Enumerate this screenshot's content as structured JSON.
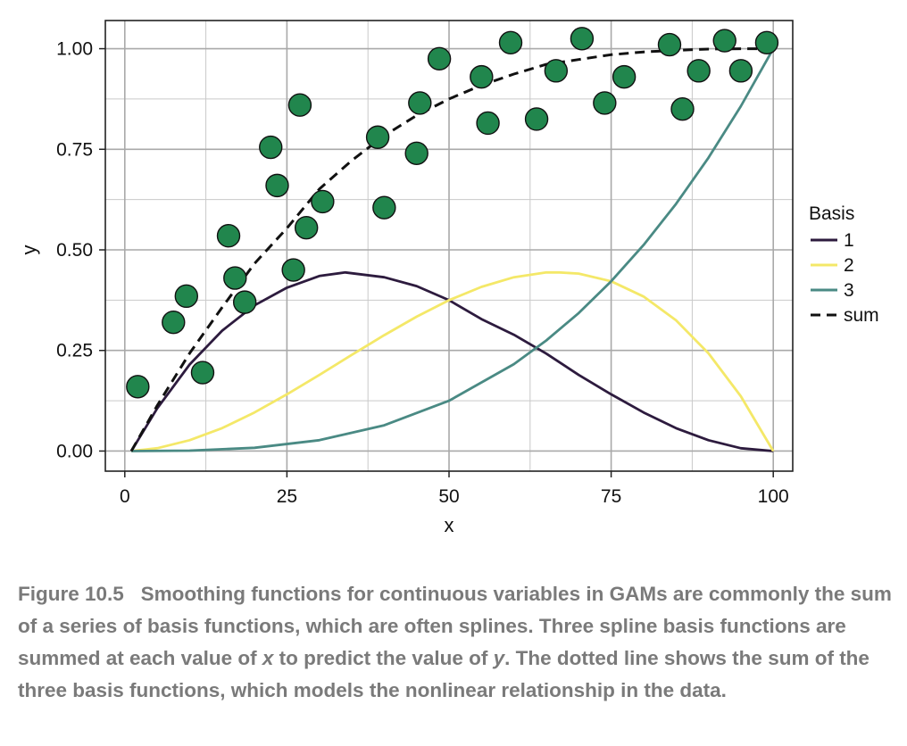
{
  "chart_data": {
    "type": "line",
    "title": "",
    "xlabel": "x",
    "ylabel": "y",
    "xlim": [
      -3,
      103
    ],
    "ylim": [
      -0.05,
      1.07
    ],
    "x_ticks": [
      0,
      25,
      50,
      75,
      100
    ],
    "x_tick_labels": [
      "0",
      "25",
      "50",
      "75",
      "100"
    ],
    "y_ticks": [
      0,
      0.25,
      0.5,
      0.75,
      1
    ],
    "y_tick_labels": [
      "0.00",
      "0.25",
      "0.50",
      "0.75",
      "1.00"
    ],
    "grid": true,
    "legend": {
      "title": "Basis",
      "placement": "right",
      "entries": [
        {
          "label": "1",
          "color": "#2d1b3e",
          "dash": "solid"
        },
        {
          "label": "2",
          "color": "#f4e868",
          "dash": "solid"
        },
        {
          "label": "3",
          "color": "#4a8a84",
          "dash": "solid"
        },
        {
          "label": "sum",
          "color": "#111111",
          "dash": "dashed"
        }
      ]
    },
    "series": [
      {
        "name": "1",
        "color": "#2d1b3e",
        "x": [
          1,
          5,
          10,
          15,
          20,
          25,
          30,
          34,
          40,
          45,
          50,
          55,
          60,
          65,
          70,
          75,
          80,
          85,
          90,
          95,
          100
        ],
        "y": [
          0,
          0.106,
          0.215,
          0.299,
          0.362,
          0.406,
          0.435,
          0.444,
          0.432,
          0.41,
          0.375,
          0.328,
          0.289,
          0.242,
          0.189,
          0.141,
          0.096,
          0.057,
          0.027,
          0.007,
          0
        ]
      },
      {
        "name": "2",
        "color": "#f4e868",
        "x": [
          1,
          5,
          10,
          15,
          20,
          25,
          30,
          35,
          40,
          45,
          50,
          55,
          60,
          65,
          67,
          70,
          75,
          80,
          85,
          90,
          95,
          100
        ],
        "y": [
          0,
          0.007,
          0.027,
          0.057,
          0.096,
          0.141,
          0.189,
          0.239,
          0.288,
          0.334,
          0.375,
          0.408,
          0.432,
          0.444,
          0.444,
          0.441,
          0.422,
          0.384,
          0.325,
          0.243,
          0.136,
          0
        ]
      },
      {
        "name": "3",
        "color": "#4a8a84",
        "x": [
          1,
          10,
          20,
          30,
          40,
          50,
          60,
          65,
          70,
          75,
          80,
          85,
          90,
          95,
          100
        ],
        "y": [
          0,
          0.001,
          0.008,
          0.027,
          0.064,
          0.125,
          0.216,
          0.275,
          0.343,
          0.422,
          0.512,
          0.614,
          0.729,
          0.857,
          1.0
        ]
      },
      {
        "name": "sum",
        "color": "#111111",
        "dash": "dashed",
        "x": [
          1,
          5,
          10,
          15,
          20,
          25,
          30,
          35,
          40,
          45,
          50,
          55,
          60,
          65,
          70,
          75,
          80,
          85,
          90,
          95,
          100
        ],
        "y": [
          0,
          0.113,
          0.243,
          0.357,
          0.466,
          0.554,
          0.651,
          0.722,
          0.784,
          0.834,
          0.875,
          0.909,
          0.937,
          0.961,
          0.973,
          0.985,
          0.992,
          0.996,
          0.999,
          1.0,
          1.0
        ]
      }
    ],
    "points": {
      "color": "#21864d",
      "x": [
        2,
        7.5,
        9.5,
        12,
        16,
        17,
        18.5,
        22.5,
        23.5,
        26,
        27,
        28,
        30.5,
        39,
        40,
        45,
        45.5,
        48.5,
        55,
        56,
        59.5,
        63.5,
        66.5,
        70.5,
        74,
        77,
        84,
        86,
        88.5,
        92.5,
        95,
        99
      ],
      "y": [
        0.16,
        0.32,
        0.385,
        0.195,
        0.535,
        0.43,
        0.37,
        0.755,
        0.66,
        0.45,
        0.86,
        0.555,
        0.62,
        0.78,
        0.605,
        0.74,
        0.865,
        0.975,
        0.93,
        0.815,
        1.015,
        0.825,
        0.945,
        1.025,
        0.865,
        0.93,
        1.01,
        0.85,
        0.945,
        1.02,
        0.945,
        1.015
      ]
    }
  },
  "caption": {
    "label": "Figure 10.5",
    "part1": "Smoothing functions for continuous variables in GAMs are commonly the sum of a series of basis functions, which are often splines. Three spline basis functions are summed at each value of ",
    "var_x": "x",
    "part2": " to predict the value of ",
    "var_y": "y",
    "part3": ". The dotted line shows the sum of the three basis functions, which models the nonlinear relationship in the data."
  }
}
